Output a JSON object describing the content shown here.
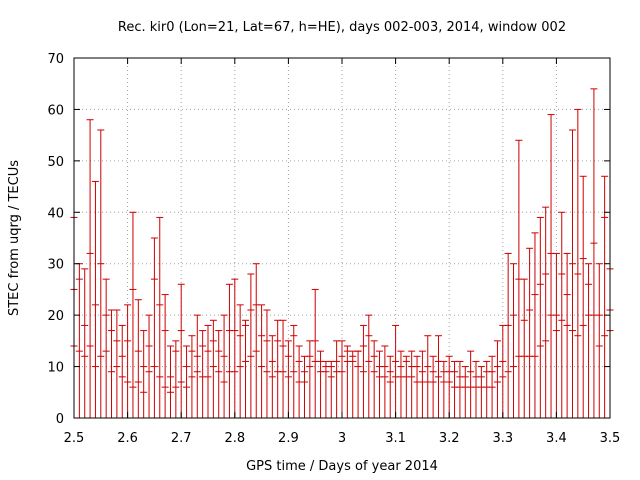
{
  "chart_data": {
    "type": "scatter",
    "title": "Rec. kir0 (Lon=21, Lat=67, h=HE), days 002-003, 2014, window 002",
    "xlabel": "GPS time / Days of year 2014",
    "ylabel": "STEC from uqrg / TECUs",
    "xlim": [
      2.5,
      3.5
    ],
    "ylim": [
      0,
      70
    ],
    "grid": true,
    "xticks": [
      "2.5",
      "2.6",
      "2.7",
      "2.8",
      "2.9",
      "3",
      "3.1",
      "3.2",
      "3.3",
      "3.4",
      "3.5"
    ],
    "yticks": [
      "0",
      "10",
      "20",
      "30",
      "40",
      "50",
      "60",
      "70"
    ],
    "colors": {
      "series": "#cc0000",
      "grid": "#a0a0a0",
      "axis": "#000000"
    },
    "series": [
      {
        "name": "STEC",
        "marker": "tick-with-vertical-error-bar-to-zero",
        "x": [
          2.5,
          2.51,
          2.52,
          2.53,
          2.54,
          2.55,
          2.56,
          2.57,
          2.58,
          2.59,
          2.6,
          2.61,
          2.62,
          2.63,
          2.64,
          2.65,
          2.66,
          2.67,
          2.68,
          2.69,
          2.7,
          2.71,
          2.72,
          2.73,
          2.74,
          2.75,
          2.76,
          2.77,
          2.78,
          2.79,
          2.8,
          2.81,
          2.82,
          2.83,
          2.84,
          2.85,
          2.86,
          2.87,
          2.88,
          2.89,
          2.9,
          2.91,
          2.92,
          2.93,
          2.94,
          2.95,
          2.96,
          2.97,
          2.98,
          2.99,
          3.0,
          3.01,
          3.02,
          3.03,
          3.04,
          3.05,
          3.06,
          3.07,
          3.08,
          3.09,
          3.1,
          3.11,
          3.12,
          3.13,
          3.14,
          3.15,
          3.16,
          3.17,
          3.18,
          3.19,
          3.2,
          3.21,
          3.22,
          3.23,
          3.24,
          3.25,
          3.26,
          3.27,
          3.28,
          3.29,
          3.3,
          3.31,
          3.32,
          3.33,
          3.34,
          3.35,
          3.36,
          3.37,
          3.38,
          3.39,
          3.4,
          3.41,
          3.42,
          3.43,
          3.44,
          3.45,
          3.46,
          3.47,
          3.48,
          3.49,
          3.5
        ],
        "y": [
          [
            14,
            25,
            39
          ],
          [
            13,
            27,
            30
          ],
          [
            12,
            18,
            29
          ],
          [
            14,
            32,
            58
          ],
          [
            10,
            22,
            46
          ],
          [
            12,
            30,
            56
          ],
          [
            13,
            20,
            27
          ],
          [
            9,
            17,
            21
          ],
          [
            10,
            15,
            21
          ],
          [
            8,
            12,
            18
          ],
          [
            7,
            15,
            22
          ],
          [
            6,
            25,
            40
          ],
          [
            7,
            13,
            23
          ],
          [
            5,
            10,
            17
          ],
          [
            9,
            14,
            20
          ],
          [
            10,
            27,
            35
          ],
          [
            8,
            22,
            39
          ],
          [
            6,
            17,
            24
          ],
          [
            5,
            8,
            14
          ],
          [
            6,
            13,
            15
          ],
          [
            7,
            17,
            26
          ],
          [
            6,
            10,
            14
          ],
          [
            8,
            13,
            16
          ],
          [
            9,
            12,
            20
          ],
          [
            8,
            14,
            17
          ],
          [
            8,
            13,
            18
          ],
          [
            10,
            15,
            19
          ],
          [
            9,
            13,
            17
          ],
          [
            7,
            12,
            20
          ],
          [
            9,
            17,
            26
          ],
          [
            9,
            17,
            27
          ],
          [
            10,
            16,
            22
          ],
          [
            11,
            18,
            19
          ],
          [
            12,
            21,
            28
          ],
          [
            13,
            22,
            30
          ],
          [
            10,
            16,
            22
          ],
          [
            9,
            15,
            21
          ],
          [
            8,
            11,
            16
          ],
          [
            9,
            15,
            19
          ],
          [
            9,
            14,
            19
          ],
          [
            8,
            12,
            15
          ],
          [
            9,
            16,
            18
          ],
          [
            7,
            11,
            14
          ],
          [
            7,
            9,
            12
          ],
          [
            10,
            12,
            15
          ],
          [
            11,
            15,
            25
          ],
          [
            9,
            11,
            13
          ],
          [
            9,
            10,
            11
          ],
          [
            8,
            10,
            11
          ],
          [
            9,
            11,
            15
          ],
          [
            9,
            12,
            15
          ],
          [
            11,
            13,
            14
          ],
          [
            11,
            12,
            13
          ],
          [
            10,
            13,
            13
          ],
          [
            9,
            14,
            18
          ],
          [
            11,
            16,
            20
          ],
          [
            9,
            12,
            15
          ],
          [
            8,
            10,
            13
          ],
          [
            8,
            10,
            14
          ],
          [
            7,
            9,
            12
          ],
          [
            8,
            11,
            18
          ],
          [
            8,
            10,
            13
          ],
          [
            8,
            11,
            12
          ],
          [
            8,
            10,
            13
          ],
          [
            7,
            10,
            12
          ],
          [
            7,
            9,
            13
          ],
          [
            7,
            10,
            16
          ],
          [
            7,
            9,
            12
          ],
          [
            8,
            11,
            16
          ],
          [
            7,
            9,
            11
          ],
          [
            7,
            9,
            12
          ],
          [
            6,
            9,
            11
          ],
          [
            6,
            8,
            11
          ],
          [
            6,
            8,
            10
          ],
          [
            6,
            9,
            13
          ],
          [
            6,
            8,
            11
          ],
          [
            6,
            8,
            10
          ],
          [
            6,
            9,
            11
          ],
          [
            6,
            9,
            12
          ],
          [
            7,
            10,
            15
          ],
          [
            8,
            11,
            18
          ],
          [
            9,
            18,
            32
          ],
          [
            10,
            20,
            30
          ],
          [
            12,
            27,
            54
          ],
          [
            12,
            19,
            27
          ],
          [
            12,
            21,
            33
          ],
          [
            12,
            24,
            36
          ],
          [
            14,
            26,
            39
          ],
          [
            15,
            28,
            41
          ],
          [
            20,
            32,
            59
          ],
          [
            17,
            20,
            32
          ],
          [
            19,
            28,
            40
          ],
          [
            18,
            24,
            32
          ],
          [
            17,
            30,
            56
          ],
          [
            16,
            28,
            60
          ],
          [
            18,
            31,
            47
          ],
          [
            20,
            26,
            30
          ],
          [
            20,
            34,
            64
          ],
          [
            14,
            20,
            30
          ],
          [
            16,
            39,
            47
          ],
          [
            17,
            21,
            29
          ]
        ]
      }
    ]
  }
}
